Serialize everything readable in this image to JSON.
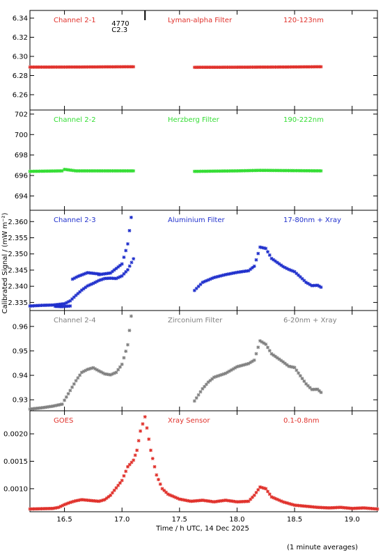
{
  "chart_data": {
    "type": "scatter",
    "xlabel": "Time / h UTC, 14 Dec 2025",
    "ylabel": "Calibrated Signal / (mW m⁻²)",
    "footnote": "(1 minute averages)",
    "xlim": [
      16.2,
      19.22
    ],
    "xticks": [
      16.5,
      17.0,
      17.5,
      18.0,
      18.5,
      19.0
    ],
    "xtick_labels": [
      "16.5",
      "17.0",
      "17.5",
      "18.0",
      "18.5",
      "19.0"
    ],
    "event_marker": {
      "x": 17.2,
      "text_top": "4770",
      "text_bottom": "C2.3"
    },
    "panels": [
      {
        "name": "Channel 2-1",
        "filter": "Lyman-alpha Filter",
        "band": "120-123nm",
        "color": "#e0302a",
        "ylim": [
          6.244,
          6.348
        ],
        "yticks": [
          6.26,
          6.28,
          6.3,
          6.32,
          6.34
        ],
        "ytick_labels": [
          "6.26",
          "6.28",
          "6.30",
          "6.32",
          "6.34"
        ],
        "segments": [
          {
            "x": [
              16.2,
              16.6,
              16.9,
              17.1
            ],
            "y": [
              6.2888,
              6.2889,
              6.2891,
              6.2892
            ]
          },
          {
            "x": [
              17.63,
              18.0,
              18.4,
              18.73
            ],
            "y": [
              6.2886,
              6.2887,
              6.2889,
              6.2892
            ]
          }
        ]
      },
      {
        "name": "Channel 2-2",
        "filter": "Herzberg Filter",
        "band": "190-222nm",
        "color": "#33dd33",
        "ylim": [
          692.6,
          702.4
        ],
        "yticks": [
          694,
          696,
          698,
          700,
          702
        ],
        "ytick_labels": [
          "694",
          "696",
          "698",
          "700",
          "702"
        ],
        "segments": [
          {
            "x": [
              16.2,
              16.48,
              16.5,
              16.6,
              17.1
            ],
            "y": [
              696.4,
              696.45,
              696.6,
              696.45,
              696.45
            ]
          },
          {
            "x": [
              17.63,
              18.0,
              18.2,
              18.73
            ],
            "y": [
              696.4,
              696.45,
              696.5,
              696.45
            ]
          }
        ]
      },
      {
        "name": "Channel 2-3",
        "filter": "Aluminium Filter",
        "band": "17-80nm + Xray",
        "color": "#1f2fcc",
        "ylim": [
          2.3325,
          2.3635
        ],
        "yticks": [
          2.335,
          2.34,
          2.345,
          2.35,
          2.355,
          2.36
        ],
        "ytick_labels": [
          "2.335",
          "2.340",
          "2.345",
          "2.350",
          "2.355",
          "2.360"
        ],
        "segments": [
          {
            "x": [
              16.2,
              16.3,
              16.4,
              16.5,
              16.55,
              16.6,
              16.65,
              16.7,
              16.75,
              16.8,
              16.85,
              16.9,
              16.95,
              17.0,
              17.05,
              17.1
            ],
            "y": [
              2.3339,
              2.3341,
              2.3342,
              2.3346,
              2.3355,
              2.3372,
              2.3388,
              2.3401,
              2.3409,
              2.3418,
              2.3424,
              2.3425,
              2.3424,
              2.3432,
              2.3451,
              2.3485
            ]
          },
          {
            "x": [
              16.42,
              16.48,
              16.55
            ],
            "y": [
              2.3338,
              2.3337,
              2.3339
            ]
          },
          {
            "x": [
              16.57,
              16.62,
              16.7,
              16.8
            ],
            "y": [
              2.3422,
              2.3431,
              2.3442,
              2.3438
            ]
          },
          {
            "x": [
              16.8,
              16.9,
              17.0,
              17.05,
              17.08
            ],
            "y": [
              2.3436,
              2.3441,
              2.3469,
              2.3531,
              2.3613
            ]
          },
          {
            "x": [
              17.63,
              17.7,
              17.8,
              17.9,
              18.0,
              18.1,
              18.15,
              18.2,
              18.25,
              18.3,
              18.4,
              18.45,
              18.5,
              18.55,
              18.6,
              18.65,
              18.7,
              18.73
            ],
            "y": [
              2.3387,
              2.3412,
              2.3427,
              2.3436,
              2.3443,
              2.3448,
              2.3462,
              2.3521,
              2.3517,
              2.3486,
              2.3461,
              2.3452,
              2.3445,
              2.3429,
              2.3412,
              2.3402,
              2.3403,
              2.3397
            ]
          }
        ]
      },
      {
        "name": "Channel 2-4",
        "filter": "Zirconium Filter",
        "band": "6-20nm + Xray",
        "color": "#808080",
        "ylim": [
          0.9255,
          0.9665
        ],
        "yticks": [
          0.93,
          0.94,
          0.95,
          0.96
        ],
        "ytick_labels": [
          "0.93",
          "0.94",
          "0.95",
          "0.96"
        ],
        "segments": [
          {
            "x": [
              16.2,
              16.3,
              16.4,
              16.48,
              16.5,
              16.55,
              16.6,
              16.65,
              16.7,
              16.75,
              16.8,
              16.85,
              16.9,
              16.95,
              17.0,
              17.05,
              17.08
            ],
            "y": [
              0.9262,
              0.9267,
              0.9274,
              0.9282,
              0.9298,
              0.9338,
              0.9378,
              0.9412,
              0.9424,
              0.9431,
              0.9418,
              0.9406,
              0.9402,
              0.9412,
              0.9445,
              0.9525,
              0.9642
            ]
          },
          {
            "x": [
              17.63,
              17.7,
              17.75,
              17.8,
              17.9,
              18.0,
              18.1,
              18.15,
              18.2,
              18.25,
              18.3,
              18.4,
              18.45,
              18.5,
              18.55,
              18.6,
              18.65,
              18.7,
              18.73
            ],
            "y": [
              0.9295,
              0.9345,
              0.9372,
              0.9392,
              0.9408,
              0.9435,
              0.9448,
              0.9462,
              0.9541,
              0.9527,
              0.9488,
              0.9455,
              0.9437,
              0.9432,
              0.9398,
              0.9365,
              0.9342,
              0.9343,
              0.933
            ]
          }
        ]
      },
      {
        "name": "GOES",
        "filter": "Xray Sensor",
        "band": "0.1-0.8nm",
        "color": "#e0302a",
        "ylim": [
          0.00058,
          0.00242
        ],
        "yticks": [
          0.001,
          0.0015,
          0.002
        ],
        "ytick_labels": [
          "0.0010",
          "0.0015",
          "0.0020"
        ],
        "segments": [
          {
            "x": [
              16.2,
              16.4,
              16.45,
              16.5,
              16.55,
              16.6,
              16.65,
              16.7,
              16.8,
              16.85,
              16.9,
              17.0,
              17.05,
              17.1,
              17.13,
              17.16,
              17.2,
              17.25,
              17.3,
              17.35,
              17.4,
              17.5,
              17.6,
              17.7,
              17.8,
              17.9,
              18.0,
              18.1,
              18.15,
              18.2,
              18.25,
              18.3,
              18.4,
              18.5,
              18.6,
              18.7,
              18.8,
              18.9,
              19.0,
              19.1,
              19.22
            ],
            "y": [
              0.00063,
              0.00064,
              0.00066,
              0.00071,
              0.00075,
              0.00078,
              0.0008,
              0.00079,
              0.00077,
              0.0008,
              0.00088,
              0.00115,
              0.0014,
              0.00152,
              0.0017,
              0.00205,
              0.00231,
              0.0017,
              0.00125,
              0.001,
              0.0009,
              0.00081,
              0.00077,
              0.00079,
              0.00076,
              0.00079,
              0.00076,
              0.00077,
              0.00088,
              0.00103,
              0.001,
              0.00085,
              0.00076,
              0.0007,
              0.00068,
              0.00066,
              0.00065,
              0.00066,
              0.00064,
              0.00065,
              0.00063
            ]
          }
        ]
      }
    ]
  }
}
